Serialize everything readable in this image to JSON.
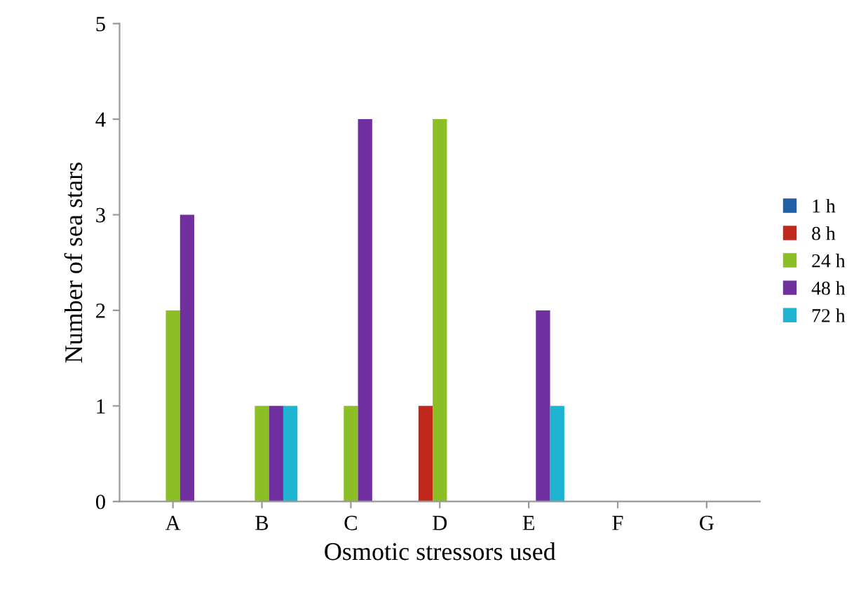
{
  "chart_data": {
    "type": "bar",
    "xlabel": "Osmotic stressors used",
    "ylabel": "Number of sea stars",
    "categories": [
      "A",
      "B",
      "C",
      "D",
      "E",
      "F",
      "G"
    ],
    "series": [
      {
        "name": "1 h",
        "color": "#1f5fa8",
        "values": [
          0,
          0,
          0,
          0,
          0,
          0,
          0
        ]
      },
      {
        "name": "8 h",
        "color": "#c0281e",
        "values": [
          0,
          0,
          0,
          1,
          0,
          0,
          0
        ]
      },
      {
        "name": "24 h",
        "color": "#8cbf26",
        "values": [
          2,
          1,
          1,
          4,
          0,
          0,
          0
        ]
      },
      {
        "name": "48 h",
        "color": "#7030a0",
        "values": [
          3,
          1,
          4,
          0,
          2,
          0,
          0
        ]
      },
      {
        "name": "72 h",
        "color": "#1fb4d2",
        "values": [
          0,
          1,
          0,
          0,
          1,
          0,
          0
        ]
      }
    ],
    "ylim": [
      0,
      5
    ],
    "yticks": [
      0,
      1,
      2,
      3,
      4,
      5
    ],
    "grid": false,
    "legend": "right"
  }
}
